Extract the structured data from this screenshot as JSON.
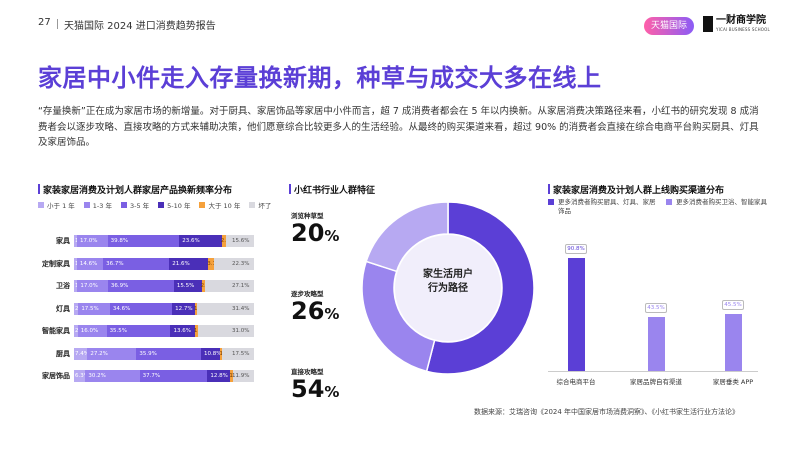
{
  "header": {
    "page_number": "27",
    "report_title": "天猫国际 2024 进口消费趋势报告",
    "logo_tmall": "天猫国际",
    "logo_cbs_cn": "一财商学院",
    "logo_cbs_en": "YICAI BUSINESS SCHOOL"
  },
  "headline": "家居中小件走入存量换新期，种草与成交大多在线上",
  "intro": "“存量换新”正在成为家居市场的新增量。对于厨具、家居饰品等家居中小件而言，超 7 成消费者都会在 5 年以内换新。从家居消费决策路径来看，小红书的研究发现 8 成消费者会以逐步攻略、直接攻略的方式来辅助决策，他们愿意综合比较更多人的生活经验。从最终的购买渠道来看，超过 90% 的消费者会直接在综合电商平台购买厨具、灯具及家居饰品。",
  "source": "数据来源：艾瑞咨询《2024 年中国家居市场消费洞察》、《小红书家生活行业方法论》",
  "chart_data": [
    {
      "type": "bar",
      "stacked": true,
      "orientation": "horizontal",
      "title": "家装家居消费及计划人群家居产品换新频率分布",
      "categories": [
        "家具",
        "定制家具",
        "卫浴",
        "灯具",
        "智能家具",
        "厨具",
        "家居饰品"
      ],
      "series": [
        {
          "name": "小于 1 年",
          "color": "#b7a9f2",
          "values": [
            1.7,
            1.6,
            1.9,
            2.4,
            2.1,
            7.4,
            6.3
          ],
          "labels": [
            "1.7%",
            "1.6%",
            "1.9%",
            "2.4%",
            "2.1%",
            "7.4%",
            "6.3%"
          ]
        },
        {
          "name": "1-3 年",
          "color": "#9a85ee",
          "values": [
            17.0,
            14.6,
            17.0,
            17.5,
            16.0,
            27.2,
            30.2
          ],
          "labels": [
            "17.0%",
            "14.6%",
            "17.0%",
            "17.5%",
            "16.0%",
            "27.2%",
            "30.2%"
          ]
        },
        {
          "name": "3-5 年",
          "color": "#7a5fe3",
          "values": [
            39.8,
            36.7,
            36.9,
            34.6,
            35.5,
            35.9,
            37.7
          ],
          "labels": [
            "39.8%",
            "36.7%",
            "36.9%",
            "34.6%",
            "35.5%",
            "35.9%",
            "37.7%"
          ]
        },
        {
          "name": "5-10 年",
          "color": "#4a2fb8",
          "values": [
            23.6,
            21.6,
            15.5,
            12.7,
            13.6,
            10.8,
            12.8
          ],
          "labels": [
            "23.6%",
            "21.6%",
            "15.5%",
            "12.7%",
            "13.6%",
            "10.8%",
            "12.8%"
          ]
        },
        {
          "name": "大于 10 年",
          "color": "#f5a13c",
          "values": [
            2.3,
            3.1,
            2.1,
            1.3,
            1.8,
            1.1,
            1.2
          ],
          "labels": [
            "2.3%",
            "3.1%",
            "2.1%",
            "1.3%",
            "1.8%",
            "1.1%",
            "1.2%"
          ]
        },
        {
          "name": "坏了",
          "color": "#d9d9df",
          "values": [
            15.6,
            22.3,
            27.1,
            31.4,
            31.0,
            17.5,
            11.9
          ],
          "labels": [
            "15.6%",
            "22.3%",
            "27.1%",
            "31.4%",
            "31.0%",
            "17.5%",
            "11.9%"
          ]
        }
      ]
    },
    {
      "type": "pie",
      "title": "小红书行业人群特征",
      "center_label_line1": "家生活用户",
      "center_label_line2": "行为路径",
      "slices": [
        {
          "name": "浏览种草型",
          "value": 20,
          "label": "20",
          "unit": "%",
          "color": "#b7a9f2"
        },
        {
          "name": "逐步攻略型",
          "value": 26,
          "label": "26",
          "unit": "%",
          "color": "#9a85ee"
        },
        {
          "name": "直接攻略型",
          "value": 54,
          "label": "54",
          "unit": "%",
          "color": "#5b3fd6"
        }
      ]
    },
    {
      "type": "bar",
      "title": "家装家居消费及计划人群上线购买渠道分布",
      "categories": [
        "综合电商平台",
        "家居品牌自有渠道",
        "家居垂类 APP"
      ],
      "series": [
        {
          "name": "更多消费者购买厨具、灯具、家居饰品",
          "color": "#5b3fd6",
          "values": [
            90.8,
            null,
            null
          ],
          "labels": [
            "90.8%",
            "",
            ""
          ]
        },
        {
          "name": "更多消费者购买卫浴、智能家具",
          "color": "#9a85ee",
          "values": [
            null,
            43.5,
            45.5
          ],
          "labels": [
            "",
            "43.5%",
            "45.5%"
          ]
        }
      ],
      "ylim": [
        0,
        100
      ]
    }
  ]
}
